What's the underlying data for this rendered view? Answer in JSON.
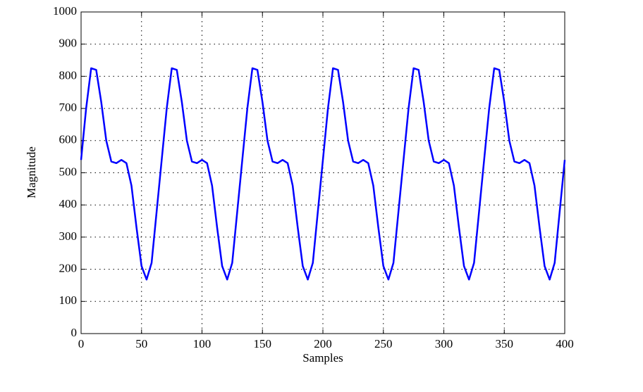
{
  "chart_data": {
    "type": "line",
    "xlabel": "Samples",
    "ylabel": "Magnitude",
    "x": [
      0,
      4.17,
      8.33,
      12.5,
      16.67,
      20.83,
      25,
      29.17,
      33.33,
      37.5,
      41.67,
      45.83,
      50,
      54.17,
      58.33,
      62.5,
      66.67,
      70.83,
      75,
      79.17,
      83.33,
      87.5,
      91.67,
      95.83,
      100,
      104.17,
      108.33,
      112.5,
      116.67,
      120.83,
      125,
      129.17,
      133.33,
      137.5,
      141.67,
      145.83,
      150,
      154.17,
      158.33,
      162.5,
      166.67,
      170.83,
      175,
      179.17,
      183.33,
      187.5,
      191.67,
      195.83,
      200,
      204.17,
      208.33,
      212.5,
      216.67,
      220.83,
      225,
      229.17,
      233.33,
      237.5,
      241.67,
      245.83,
      250,
      254.17,
      258.33,
      262.5,
      266.67,
      270.83,
      275,
      279.17,
      283.33,
      287.5,
      291.67,
      295.83,
      300,
      304.17,
      308.33,
      312.5,
      316.67,
      320.83,
      325,
      329.17,
      333.33,
      337.5,
      341.67,
      345.83,
      350,
      354.17,
      358.33,
      362.5,
      366.67,
      370.83,
      375,
      379.17,
      383.33,
      387.5,
      391.67,
      395.83,
      400
    ],
    "series": [
      {
        "color": "#0000ff",
        "values": [
          540,
          700,
          825,
          820,
          720,
          600,
          535,
          530,
          540,
          530,
          460,
          330,
          210,
          168,
          220,
          380,
          540,
          700,
          825,
          820,
          720,
          600,
          535,
          530,
          540,
          530,
          460,
          330,
          210,
          168,
          220,
          380,
          540,
          700,
          825,
          820,
          720,
          600,
          535,
          530,
          540,
          530,
          460,
          330,
          210,
          168,
          220,
          380,
          540,
          700,
          825,
          820,
          720,
          600,
          535,
          530,
          540,
          530,
          460,
          330,
          210,
          168,
          220,
          380,
          540,
          700,
          825,
          820,
          720,
          600,
          535,
          530,
          540,
          530,
          460,
          330,
          210,
          168,
          220,
          380,
          540,
          700,
          825,
          820,
          720,
          600,
          535,
          530,
          540,
          530,
          460,
          330,
          210,
          168,
          220,
          380,
          540
        ]
      }
    ],
    "xlim": [
      0,
      400
    ],
    "xticks": [
      0,
      50,
      100,
      150,
      200,
      250,
      300,
      350,
      400
    ],
    "ylim": [
      0,
      1000
    ],
    "yticks": [
      0,
      100,
      200,
      300,
      400,
      500,
      600,
      700,
      800,
      900,
      1000
    ],
    "grid": true
  }
}
